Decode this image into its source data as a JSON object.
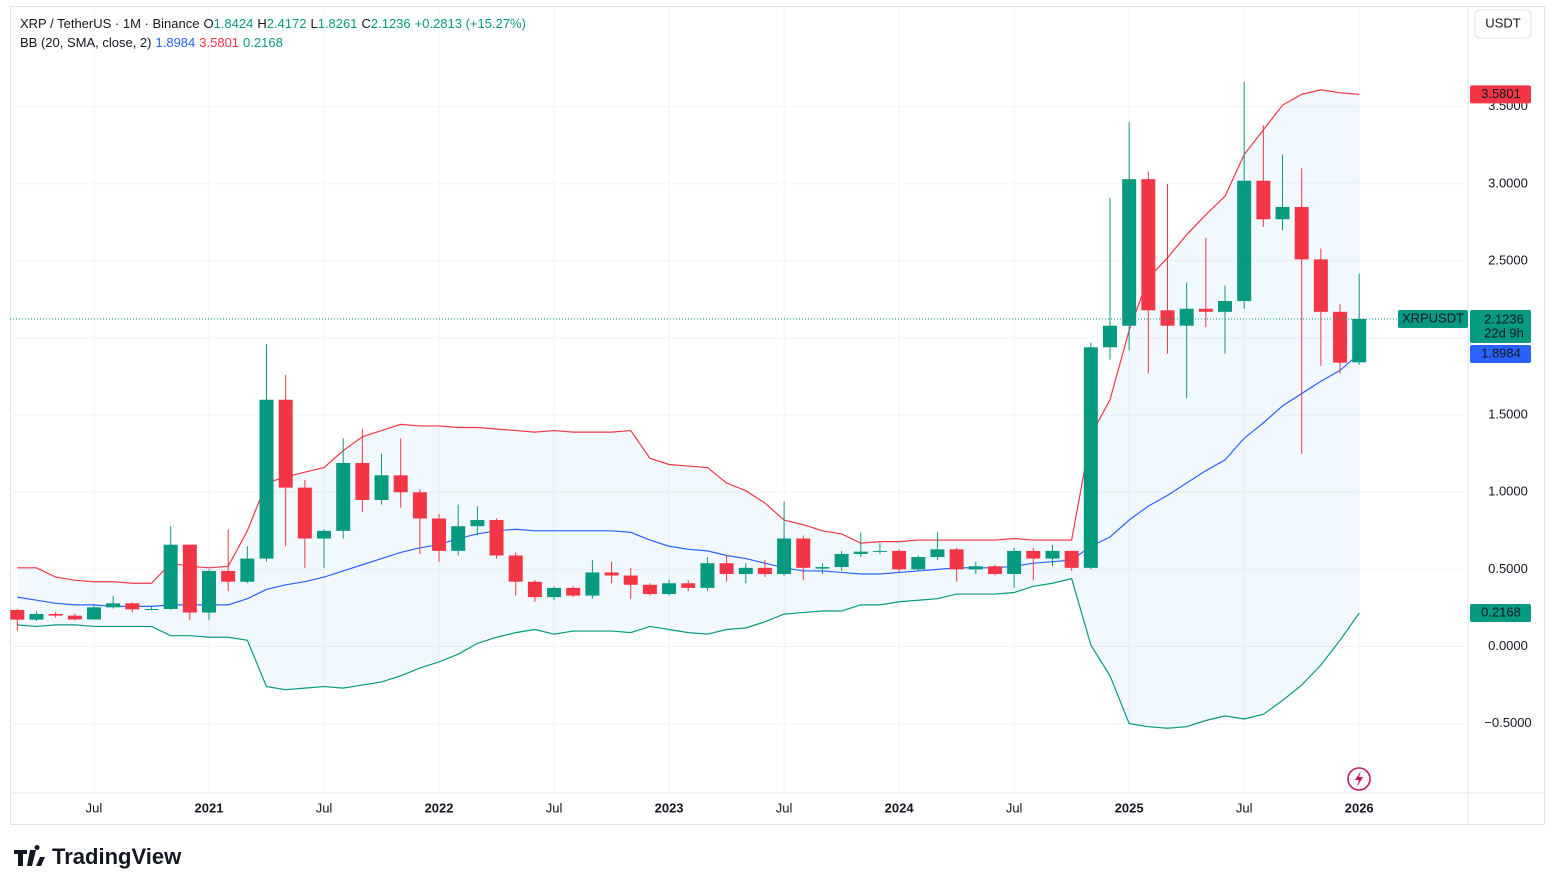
{
  "chart_data": {
    "type": "candlestick",
    "symbol": "XRP / TetherUS · 1M · Binance",
    "ohlc_letters": [
      "O",
      "H",
      "L",
      "C"
    ],
    "change": "+0.2813 (+15.27%)",
    "ticker": "XRPUSDT",
    "countdown": "22d 9h",
    "currency": "USDT",
    "brand": "TradingView",
    "up_color": "#089981",
    "down_color": "#f23645",
    "grid": true,
    "categories": [
      null,
      null,
      null,
      null,
      "Jul",
      null,
      null,
      null,
      null,
      null,
      "2021",
      null,
      null,
      null,
      null,
      null,
      "Jul",
      null,
      null,
      null,
      null,
      null,
      "2022",
      null,
      null,
      null,
      null,
      null,
      "Jul",
      null,
      null,
      null,
      null,
      null,
      "2023",
      null,
      null,
      null,
      null,
      null,
      "Jul",
      null,
      null,
      null,
      null,
      null,
      "2024",
      null,
      null,
      null,
      null,
      null,
      "Jul",
      null,
      null,
      null,
      null,
      null,
      "2025",
      null,
      null,
      null,
      null,
      null,
      "Jul",
      null,
      null,
      null,
      null,
      null,
      "2026"
    ],
    "open": [
      0.237,
      0.174,
      0.211,
      0.2,
      0.175,
      0.254,
      0.28,
      0.241,
      0.243,
      0.66,
      0.22,
      0.49,
      0.42,
      0.57,
      1.6,
      1.03,
      0.7,
      0.75,
      1.19,
      0.95,
      1.11,
      1.0,
      0.83,
      0.62,
      0.78,
      0.82,
      0.59,
      0.42,
      0.32,
      0.38,
      0.33,
      0.48,
      0.46,
      0.4,
      0.34,
      0.41,
      0.38,
      0.54,
      0.47,
      0.51,
      0.47,
      0.7,
      0.505,
      0.515,
      0.6,
      0.615,
      0.62,
      0.5,
      0.58,
      0.63,
      0.5,
      0.52,
      0.47,
      0.62,
      0.57,
      0.62,
      0.51,
      1.94,
      2.08,
      3.03,
      2.18,
      2.08,
      2.19,
      2.17,
      2.24,
      3.02,
      2.77,
      2.85,
      2.51,
      2.17,
      1.8424
    ],
    "high": [
      0.245,
      0.227,
      0.225,
      0.214,
      0.268,
      0.327,
      0.286,
      0.264,
      0.78,
      0.662,
      0.5,
      0.76,
      0.65,
      1.96,
      1.76,
      1.08,
      0.76,
      1.35,
      1.41,
      1.25,
      1.35,
      1.02,
      0.86,
      0.92,
      0.91,
      0.83,
      0.61,
      0.43,
      0.39,
      0.39,
      0.56,
      0.55,
      0.51,
      0.41,
      0.43,
      0.43,
      0.58,
      0.59,
      0.54,
      0.56,
      0.94,
      0.72,
      0.54,
      0.62,
      0.74,
      0.67,
      0.63,
      0.59,
      0.74,
      0.64,
      0.55,
      0.53,
      0.64,
      0.64,
      0.66,
      0.62,
      1.97,
      2.91,
      3.4,
      3.08,
      3.0,
      2.36,
      2.65,
      2.34,
      3.66,
      3.38,
      3.19,
      3.1,
      2.58,
      2.22,
      2.4172
    ],
    "low": [
      0.101,
      0.166,
      0.187,
      0.17,
      0.174,
      0.246,
      0.221,
      0.234,
      0.236,
      0.17,
      0.17,
      0.36,
      0.41,
      0.55,
      0.65,
      0.51,
      0.51,
      0.7,
      0.87,
      0.92,
      0.9,
      0.6,
      0.55,
      0.59,
      0.72,
      0.57,
      0.33,
      0.29,
      0.3,
      0.32,
      0.31,
      0.41,
      0.31,
      0.33,
      0.33,
      0.36,
      0.36,
      0.42,
      0.41,
      0.45,
      0.46,
      0.43,
      0.47,
      0.49,
      0.58,
      0.6,
      0.48,
      0.49,
      0.56,
      0.42,
      0.47,
      0.46,
      0.38,
      0.43,
      0.52,
      0.49,
      0.5,
      1.86,
      1.92,
      1.77,
      1.9,
      1.61,
      2.07,
      1.9,
      2.19,
      2.72,
      2.7,
      1.25,
      1.82,
      1.77,
      1.8261
    ],
    "close": [
      0.174,
      0.211,
      0.2,
      0.175,
      0.254,
      0.28,
      0.241,
      0.243,
      0.66,
      0.22,
      0.49,
      0.42,
      0.57,
      1.6,
      1.03,
      0.7,
      0.75,
      1.19,
      0.95,
      1.11,
      1.0,
      0.83,
      0.62,
      0.78,
      0.82,
      0.59,
      0.42,
      0.32,
      0.38,
      0.33,
      0.48,
      0.46,
      0.4,
      0.34,
      0.41,
      0.38,
      0.54,
      0.47,
      0.51,
      0.47,
      0.7,
      0.51,
      0.515,
      0.6,
      0.615,
      0.62,
      0.5,
      0.58,
      0.63,
      0.5,
      0.52,
      0.47,
      0.62,
      0.57,
      0.62,
      0.51,
      1.94,
      2.08,
      3.03,
      2.18,
      2.08,
      2.19,
      2.17,
      2.24,
      3.02,
      2.77,
      2.85,
      2.51,
      2.17,
      1.84,
      2.1236
    ],
    "bollinger": {
      "label": "BB (20, SMA, close, 2)",
      "fill": "#2196f3",
      "lines": [
        {
          "color": "#2962ff",
          "values": [
            0.32,
            0.3,
            0.28,
            0.27,
            0.27,
            0.26,
            0.26,
            0.26,
            0.27,
            0.27,
            0.27,
            0.27,
            0.31,
            0.37,
            0.4,
            0.42,
            0.45,
            0.49,
            0.53,
            0.57,
            0.61,
            0.64,
            0.66,
            0.7,
            0.73,
            0.75,
            0.76,
            0.75,
            0.75,
            0.75,
            0.75,
            0.75,
            0.74,
            0.69,
            0.65,
            0.63,
            0.62,
            0.59,
            0.57,
            0.54,
            0.51,
            0.49,
            0.49,
            0.48,
            0.47,
            0.47,
            0.48,
            0.49,
            0.5,
            0.51,
            0.51,
            0.51,
            0.52,
            0.54,
            0.55,
            0.56,
            0.65,
            0.71,
            0.82,
            0.91,
            0.98,
            1.06,
            1.14,
            1.21,
            1.35,
            1.45,
            1.56,
            1.64,
            1.72,
            1.79,
            1.8984
          ]
        },
        {
          "color": "#f23645",
          "values": [
            0.51,
            0.51,
            0.45,
            0.43,
            0.42,
            0.42,
            0.41,
            0.41,
            0.54,
            0.52,
            0.51,
            0.52,
            0.75,
            1.06,
            1.1,
            1.13,
            1.16,
            1.27,
            1.36,
            1.4,
            1.44,
            1.43,
            1.43,
            1.42,
            1.42,
            1.41,
            1.4,
            1.39,
            1.4,
            1.39,
            1.39,
            1.39,
            1.4,
            1.22,
            1.18,
            1.17,
            1.16,
            1.06,
            1.01,
            0.93,
            0.82,
            0.79,
            0.75,
            0.73,
            0.67,
            0.68,
            0.68,
            0.69,
            0.69,
            0.69,
            0.69,
            0.69,
            0.7,
            0.69,
            0.69,
            0.69,
            1.37,
            1.6,
            2.05,
            2.39,
            2.52,
            2.67,
            2.8,
            2.92,
            3.19,
            3.35,
            3.51,
            3.58,
            3.61,
            3.59,
            3.5801
          ]
        },
        {
          "color": "#089981",
          "values": [
            0.14,
            0.13,
            0.14,
            0.14,
            0.13,
            0.13,
            0.13,
            0.13,
            0.07,
            0.07,
            0.06,
            0.06,
            0.04,
            -0.26,
            -0.28,
            -0.27,
            -0.26,
            -0.27,
            -0.25,
            -0.23,
            -0.19,
            -0.14,
            -0.1,
            -0.05,
            0.02,
            0.06,
            0.09,
            0.11,
            0.08,
            0.1,
            0.1,
            0.1,
            0.09,
            0.13,
            0.11,
            0.09,
            0.08,
            0.11,
            0.12,
            0.16,
            0.21,
            0.22,
            0.23,
            0.23,
            0.27,
            0.27,
            0.29,
            0.3,
            0.31,
            0.34,
            0.34,
            0.34,
            0.35,
            0.39,
            0.41,
            0.44,
            0.01,
            -0.19,
            -0.5,
            -0.52,
            -0.53,
            -0.52,
            -0.48,
            -0.45,
            -0.47,
            -0.44,
            -0.35,
            -0.25,
            -0.12,
            0.04,
            0.2168
          ]
        }
      ]
    },
    "ylim": [
      -0.95,
      4.14
    ],
    "yticks": [
      {
        "value": -0.5,
        "label": "−0.5000"
      },
      {
        "value": 0,
        "label": "0.0000"
      },
      {
        "value": 0.5,
        "label": "0.5000"
      },
      {
        "value": 1,
        "label": "1.0000"
      },
      {
        "value": 1.5,
        "label": "1.5000"
      },
      {
        "value": 2,
        "label": "2.0000"
      },
      {
        "value": 2.5,
        "label": "2.5000"
      },
      {
        "value": 3,
        "label": "3.0000"
      },
      {
        "value": 3.5,
        "label": "3.5000"
      }
    ]
  }
}
